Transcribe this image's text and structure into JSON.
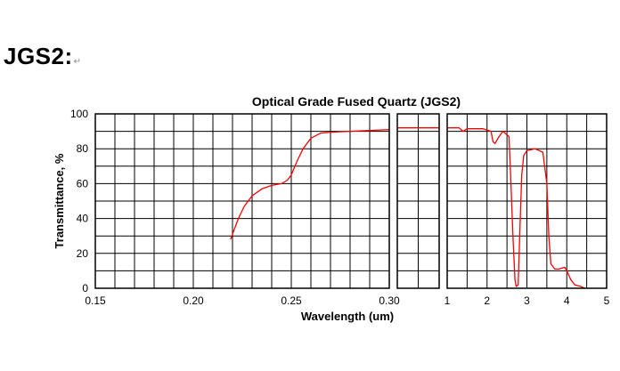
{
  "page": {
    "heading": "JGS2:",
    "heading_mark": "↵"
  },
  "chart_data": {
    "type": "line",
    "title": "Optical Grade Fused Quartz  (JGS2)",
    "xlabel": "Wavelength (um)",
    "ylabel": "Transmittance, %",
    "ylim": [
      0,
      100
    ],
    "y_ticks": [
      "0",
      "20",
      "40",
      "60",
      "80",
      "100"
    ],
    "grid": true,
    "series_color": "#ff0000",
    "panels": [
      {
        "xlim": [
          0.15,
          0.3
        ],
        "x_ticks": [
          "0.15",
          "0.20",
          "0.25",
          "0.30"
        ],
        "x_tick_values": [
          0.15,
          0.2,
          0.25,
          0.3
        ],
        "v_grid_count": 15,
        "points": [
          [
            0.219,
            28
          ],
          [
            0.221,
            34
          ],
          [
            0.223,
            40
          ],
          [
            0.226,
            47
          ],
          [
            0.23,
            53
          ],
          [
            0.235,
            57
          ],
          [
            0.24,
            59
          ],
          [
            0.245,
            60
          ],
          [
            0.248,
            62
          ],
          [
            0.25,
            65
          ],
          [
            0.253,
            73
          ],
          [
            0.256,
            80
          ],
          [
            0.26,
            86
          ],
          [
            0.265,
            89
          ],
          [
            0.27,
            89.5
          ],
          [
            0.28,
            90
          ],
          [
            0.29,
            90.5
          ],
          [
            0.3,
            91
          ]
        ]
      },
      {
        "xlim": [
          0.3,
          0.6
        ],
        "x_ticks": [],
        "x_tick_values": [],
        "v_grid_count": 2,
        "points": [
          [
            0.3,
            92
          ],
          [
            0.45,
            92
          ],
          [
            0.6,
            92
          ]
        ]
      },
      {
        "xlim": [
          1,
          5
        ],
        "x_ticks": [
          "1",
          "2",
          "3",
          "4",
          "5"
        ],
        "x_tick_values": [
          1,
          2,
          3,
          4,
          5
        ],
        "v_grid_count": 8,
        "points": [
          [
            1.0,
            92
          ],
          [
            1.3,
            92
          ],
          [
            1.4,
            90
          ],
          [
            1.5,
            91.5
          ],
          [
            1.9,
            91.5
          ],
          [
            2.1,
            90
          ],
          [
            2.15,
            84
          ],
          [
            2.2,
            83
          ],
          [
            2.3,
            87
          ],
          [
            2.4,
            90
          ],
          [
            2.55,
            87
          ],
          [
            2.6,
            60
          ],
          [
            2.65,
            30
          ],
          [
            2.7,
            5
          ],
          [
            2.73,
            1
          ],
          [
            2.78,
            2
          ],
          [
            2.82,
            30
          ],
          [
            2.87,
            65
          ],
          [
            2.92,
            76
          ],
          [
            3.0,
            79
          ],
          [
            3.2,
            80
          ],
          [
            3.4,
            78
          ],
          [
            3.5,
            60
          ],
          [
            3.55,
            30
          ],
          [
            3.6,
            14
          ],
          [
            3.7,
            11
          ],
          [
            3.8,
            11
          ],
          [
            3.95,
            12
          ],
          [
            4.0,
            10
          ],
          [
            4.1,
            5
          ],
          [
            4.2,
            2
          ],
          [
            4.35,
            1
          ],
          [
            4.45,
            0
          ]
        ]
      }
    ]
  }
}
